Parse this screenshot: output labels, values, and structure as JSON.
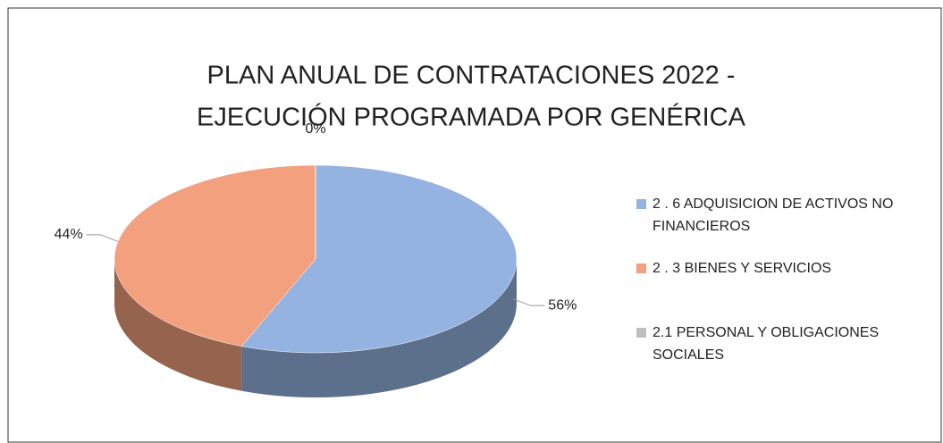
{
  "chart_data": {
    "type": "pie",
    "title": [
      "PLAN ANUAL DE CONTRATACIONES 2022 -",
      "EJECUCIÓN PROGRAMADA POR GENÉRICA"
    ],
    "categories": [
      "2 . 6 ADQUISICION DE ACTIVOS NO FINANCIEROS",
      "2 . 3 BIENES Y SERVICIOS",
      "2.1 PERSONAL Y OBLIGACIONES SOCIALES"
    ],
    "values": [
      56,
      44,
      0
    ],
    "value_labels": [
      "56%",
      "44%",
      "0%"
    ],
    "colors": [
      "#95b3e0",
      "#f2a07e",
      "#bfbfbf"
    ],
    "legend": "right"
  }
}
